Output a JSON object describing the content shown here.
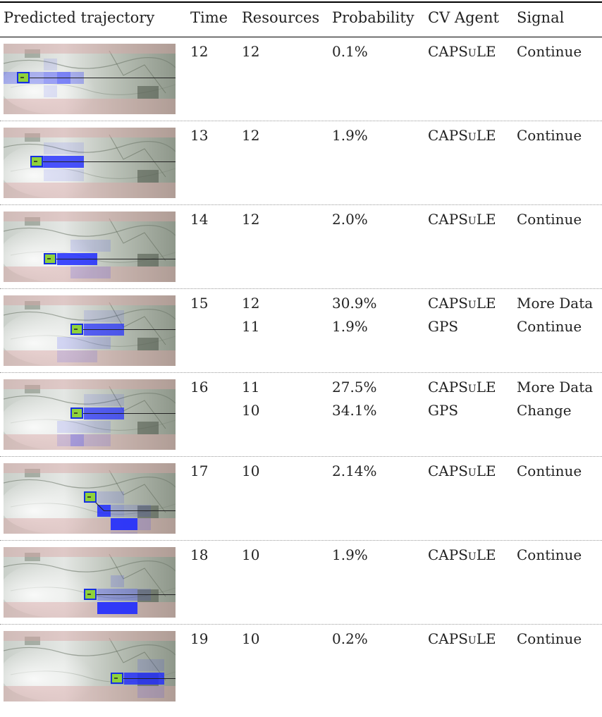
{
  "headers": {
    "trajectory": "Predicted trajectory",
    "time": "Time",
    "resources": "Resources",
    "probability": "Probability",
    "agent": "CV Agent",
    "signal": "Signal"
  },
  "rows": [
    {
      "time": "12",
      "entries": [
        {
          "resources": "12",
          "probability": "0.1%",
          "agent": "CAPSuLE",
          "signal": "Continue"
        }
      ],
      "boxes": [
        {
          "c": 0,
          "r": 2,
          "a": 0.3
        },
        {
          "c": 1,
          "r": 2,
          "a": 0.35
        },
        {
          "c": 2,
          "r": 2,
          "a": 0.3
        },
        {
          "c": 3,
          "r": 1,
          "a": 0.1
        },
        {
          "c": 3,
          "r": 2,
          "a": 0.4
        },
        {
          "c": 3,
          "r": 3,
          "a": 0.1
        },
        {
          "c": 4,
          "r": 2,
          "a": 0.55
        },
        {
          "c": 5,
          "r": 2,
          "a": 0.3
        }
      ],
      "box": {
        "c": 1,
        "r": 2
      },
      "line": [
        [
          1.5,
          2.5
        ],
        [
          13,
          2.5
        ]
      ]
    },
    {
      "time": "13",
      "entries": [
        {
          "resources": "12",
          "probability": "1.9%",
          "agent": "CAPSuLE",
          "signal": "Continue"
        }
      ],
      "boxes": [
        {
          "c": 3,
          "r": 1,
          "a": 0.1
        },
        {
          "c": 4,
          "r": 1,
          "a": 0.1
        },
        {
          "c": 5,
          "r": 1,
          "a": 0.1
        },
        {
          "c": 2,
          "r": 2,
          "a": 0.7
        },
        {
          "c": 3,
          "r": 2,
          "a": 0.8
        },
        {
          "c": 4,
          "r": 2,
          "a": 0.8
        },
        {
          "c": 5,
          "r": 2,
          "a": 0.8
        },
        {
          "c": 3,
          "r": 3,
          "a": 0.1
        },
        {
          "c": 4,
          "r": 3,
          "a": 0.1
        },
        {
          "c": 5,
          "r": 3,
          "a": 0.1
        }
      ],
      "box": {
        "c": 2,
        "r": 2
      },
      "line": [
        [
          2.5,
          2.5
        ],
        [
          13,
          2.5
        ]
      ]
    },
    {
      "time": "14",
      "entries": [
        {
          "resources": "12",
          "probability": "2.0%",
          "agent": "CAPSuLE",
          "signal": "Continue"
        }
      ],
      "boxes": [
        {
          "c": 5,
          "r": 2,
          "a": 0.12
        },
        {
          "c": 6,
          "r": 2,
          "a": 0.12
        },
        {
          "c": 7,
          "r": 2,
          "a": 0.12
        },
        {
          "c": 4,
          "r": 3,
          "a": 0.85
        },
        {
          "c": 5,
          "r": 3,
          "a": 0.85
        },
        {
          "c": 6,
          "r": 3,
          "a": 0.85
        },
        {
          "c": 5,
          "r": 4,
          "a": 0.15
        },
        {
          "c": 6,
          "r": 4,
          "a": 0.15
        },
        {
          "c": 7,
          "r": 4,
          "a": 0.15
        }
      ],
      "box": {
        "c": 3,
        "r": 3
      },
      "line": [
        [
          3.5,
          3.5
        ],
        [
          13,
          3.5
        ]
      ]
    },
    {
      "time": "15",
      "entries": [
        {
          "resources": "12",
          "probability": "30.9%",
          "agent": "CAPSuLE",
          "signal": "More Data"
        },
        {
          "resources": "11",
          "probability": "1.9%",
          "agent": "GPS",
          "signal": "Continue"
        }
      ],
      "boxes": [
        {
          "c": 6,
          "r": 1,
          "a": 0.1
        },
        {
          "c": 7,
          "r": 1,
          "a": 0.1
        },
        {
          "c": 8,
          "r": 1,
          "a": 0.1
        },
        {
          "c": 6,
          "r": 2,
          "a": 0.7
        },
        {
          "c": 7,
          "r": 2,
          "a": 0.7
        },
        {
          "c": 8,
          "r": 2,
          "a": 0.7
        },
        {
          "c": 4,
          "r": 3,
          "a": 0.15
        },
        {
          "c": 5,
          "r": 3,
          "a": 0.15
        },
        {
          "c": 6,
          "r": 3,
          "a": 0.15
        },
        {
          "c": 7,
          "r": 3,
          "a": 0.15
        },
        {
          "c": 4,
          "r": 4,
          "a": 0.12
        },
        {
          "c": 5,
          "r": 4,
          "a": 0.12
        },
        {
          "c": 6,
          "r": 4,
          "a": 0.12
        }
      ],
      "box": {
        "c": 5,
        "r": 2
      },
      "line": [
        [
          5.5,
          2.5
        ],
        [
          13,
          2.5
        ]
      ]
    },
    {
      "time": "16",
      "entries": [
        {
          "resources": "11",
          "probability": "27.5%",
          "agent": "CAPSuLE",
          "signal": "More Data"
        },
        {
          "resources": "10",
          "probability": "34.1%",
          "agent": "GPS",
          "signal": "Change"
        }
      ],
      "boxes": [
        {
          "c": 6,
          "r": 1,
          "a": 0.1
        },
        {
          "c": 7,
          "r": 1,
          "a": 0.1
        },
        {
          "c": 8,
          "r": 1,
          "a": 0.1
        },
        {
          "c": 6,
          "r": 2,
          "a": 0.7
        },
        {
          "c": 7,
          "r": 2,
          "a": 0.7
        },
        {
          "c": 8,
          "r": 2,
          "a": 0.7
        },
        {
          "c": 4,
          "r": 3,
          "a": 0.12
        },
        {
          "c": 5,
          "r": 3,
          "a": 0.12
        },
        {
          "c": 6,
          "r": 3,
          "a": 0.12
        },
        {
          "c": 7,
          "r": 3,
          "a": 0.12
        },
        {
          "c": 4,
          "r": 4,
          "a": 0.12
        },
        {
          "c": 5,
          "r": 4,
          "a": 0.3
        },
        {
          "c": 6,
          "r": 4,
          "a": 0.12
        },
        {
          "c": 7,
          "r": 4,
          "a": 0.12
        }
      ],
      "box": {
        "c": 5,
        "r": 2
      },
      "line": [
        [
          5.5,
          2.5
        ],
        [
          13,
          2.5
        ]
      ]
    },
    {
      "time": "17",
      "entries": [
        {
          "resources": "10",
          "probability": "2.14%",
          "agent": "CAPSuLE",
          "signal": "Continue"
        }
      ],
      "boxes": [
        {
          "c": 7,
          "r": 2,
          "a": 0.12
        },
        {
          "c": 8,
          "r": 2,
          "a": 0.12
        },
        {
          "c": 7,
          "r": 3,
          "a": 0.85
        },
        {
          "c": 8,
          "r": 3,
          "a": 0.2
        },
        {
          "c": 9,
          "r": 3,
          "a": 0.12
        },
        {
          "c": 10,
          "r": 3,
          "a": 0.12
        },
        {
          "c": 8,
          "r": 4,
          "a": 0.9
        },
        {
          "c": 9,
          "r": 4,
          "a": 0.9
        },
        {
          "c": 10,
          "r": 4,
          "a": 0.15
        },
        {
          "c": 8,
          "r": 5,
          "a": 0.12
        },
        {
          "c": 9,
          "r": 5,
          "a": 0.12
        }
      ],
      "box": {
        "c": 6,
        "r": 2
      },
      "line": [
        [
          6.5,
          2.5
        ],
        [
          7.5,
          3.5
        ],
        [
          9.5,
          3.5
        ],
        [
          13,
          3.5
        ]
      ]
    },
    {
      "time": "18",
      "entries": [
        {
          "resources": "10",
          "probability": "1.9%",
          "agent": "CAPSuLE",
          "signal": "Continue"
        }
      ],
      "boxes": [
        {
          "c": 8,
          "r": 2,
          "a": 0.15
        },
        {
          "c": 7,
          "r": 3,
          "a": 0.3
        },
        {
          "c": 8,
          "r": 3,
          "a": 0.3
        },
        {
          "c": 9,
          "r": 3,
          "a": 0.3
        },
        {
          "c": 10,
          "r": 3,
          "a": 0.12
        },
        {
          "c": 7,
          "r": 4,
          "a": 0.9
        },
        {
          "c": 8,
          "r": 4,
          "a": 0.9
        },
        {
          "c": 9,
          "r": 4,
          "a": 0.9
        }
      ],
      "box": {
        "c": 6,
        "r": 3
      },
      "line": [
        [
          6.5,
          3.5
        ],
        [
          13,
          3.5
        ]
      ]
    },
    {
      "time": "19",
      "entries": [
        {
          "resources": "10",
          "probability": "0.2%",
          "agent": "CAPSuLE",
          "signal": "Continue"
        }
      ],
      "boxes": [
        {
          "c": 10,
          "r": 2,
          "a": 0.12
        },
        {
          "c": 11,
          "r": 2,
          "a": 0.12
        },
        {
          "c": 8,
          "r": 3,
          "a": 0.15
        },
        {
          "c": 9,
          "r": 3,
          "a": 0.8
        },
        {
          "c": 10,
          "r": 3,
          "a": 0.8
        },
        {
          "c": 11,
          "r": 3,
          "a": 0.8
        },
        {
          "c": 10,
          "r": 4,
          "a": 0.12
        },
        {
          "c": 11,
          "r": 4,
          "a": 0.12
        }
      ],
      "box": {
        "c": 8,
        "r": 3
      },
      "line": [
        [
          8.5,
          3.5
        ],
        [
          13,
          3.5
        ]
      ]
    }
  ]
}
